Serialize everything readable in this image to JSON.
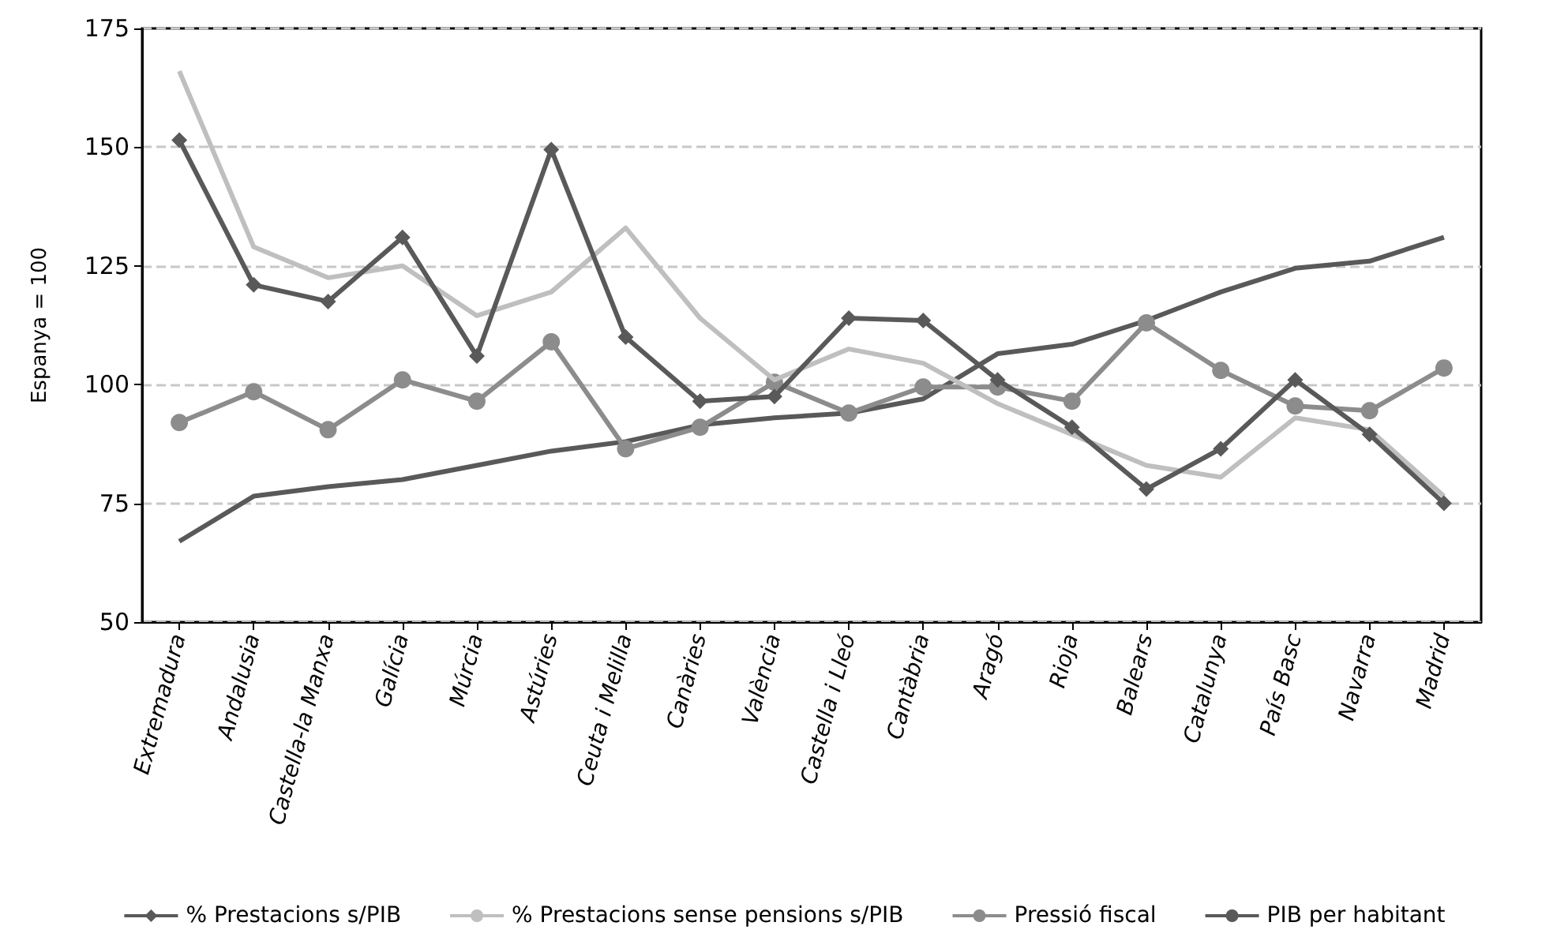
{
  "chart_data": {
    "type": "line",
    "ylabel": "Espanya = 100",
    "categories": [
      "Extremadura",
      "Andalusia",
      "Castella-la Manxa",
      "Galícia",
      "Múrcia",
      "Astúries",
      "Ceuta i Melilla",
      "Canàries",
      "València",
      "Castella i Lleó",
      "Cantàbria",
      "Aragó",
      "Rioja",
      "Balears",
      "Catalunya",
      "País Basc",
      "Navarra",
      "Madrid"
    ],
    "series": [
      {
        "name": "% Prestacions s/PIB",
        "color": "#595959",
        "marker": "diamond",
        "values": [
          151.5,
          121,
          117.5,
          131,
          106,
          149.5,
          110,
          96.5,
          97.5,
          114,
          113.5,
          101,
          91,
          78,
          86.5,
          101,
          89.5,
          75
        ]
      },
      {
        "name": "% Prestacions sense pensions s/PIB",
        "color": "#bfbfbf",
        "marker": "none",
        "values": [
          166,
          129,
          122.5,
          125,
          114.5,
          119.5,
          133,
          114,
          101,
          107.5,
          104.5,
          96,
          89.5,
          83,
          80.5,
          93,
          90.5,
          76.5
        ]
      },
      {
        "name": "Pressió fiscal",
        "color": "#8c8c8c",
        "marker": "circle",
        "values": [
          92,
          98.5,
          90.5,
          101,
          96.5,
          109,
          86.5,
          91,
          100.5,
          94,
          99.5,
          99.5,
          96.5,
          113,
          103,
          95.5,
          94.5,
          103.5
        ]
      },
      {
        "name": "PIB per habitant",
        "color": "#595959",
        "marker": "none",
        "values": [
          67,
          76.5,
          78.5,
          80,
          83,
          86,
          88,
          91.5,
          93,
          94,
          97,
          106.5,
          108.5,
          113.5,
          119.5,
          124.5,
          126,
          131
        ]
      }
    ],
    "ylim": [
      50,
      175
    ],
    "yticks": [
      50,
      75,
      100,
      125,
      150,
      175
    ],
    "grid": "y",
    "legend": "bottom",
    "line_style": "solid"
  }
}
